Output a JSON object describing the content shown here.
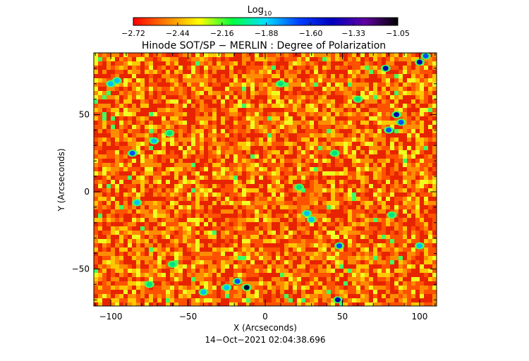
{
  "chart_data": {
    "type": "heatmap",
    "title": "Hinode SOT/SP − MERLIN : Degree of Polarization",
    "xlabel": "X (Arcseconds)",
    "ylabel": "Y (Arcseconds)",
    "timestamp": "14−Oct−2021 02:04:38.696",
    "xlim": [
      -111,
      111
    ],
    "ylim": [
      -74,
      90
    ],
    "x_ticks": [
      {
        "value": -100,
        "label": "−100"
      },
      {
        "value": -50,
        "label": "−50"
      },
      {
        "value": 0,
        "label": "0"
      },
      {
        "value": 50,
        "label": "50"
      },
      {
        "value": 100,
        "label": "100"
      }
    ],
    "y_ticks": [
      {
        "value": -50,
        "label": "−50"
      },
      {
        "value": 0,
        "label": "0"
      },
      {
        "value": 50,
        "label": "50"
      }
    ],
    "colorbar": {
      "title": "Log",
      "title_subscript": "10",
      "range": [
        -2.72,
        -1.05
      ],
      "ticks": [
        {
          "value": -2.72,
          "label": "−2.72"
        },
        {
          "value": -2.44,
          "label": "−2.44"
        },
        {
          "value": -2.16,
          "label": "−2.16"
        },
        {
          "value": -1.88,
          "label": "−1.88"
        },
        {
          "value": -1.6,
          "label": "−1.60"
        },
        {
          "value": -1.33,
          "label": "−1.33"
        },
        {
          "value": -1.05,
          "label": "−1.05"
        }
      ],
      "colors": [
        "#ff0000",
        "#ff8000",
        "#ffff00",
        "#00ff40",
        "#00e0ff",
        "#0040ff",
        "#0000c0",
        "#6000a0",
        "#000000"
      ]
    },
    "field_background_color": "#ff6a00",
    "field_palette": [
      "#e82400",
      "#ff5200",
      "#ff8c00",
      "#ffc800",
      "#f0ff20",
      "#40ff60"
    ],
    "concentrations": [
      {
        "x": -12,
        "y": -62,
        "level": -1.1
      },
      {
        "x": -18,
        "y": -58,
        "level": -1.4
      },
      {
        "x": -25,
        "y": -62,
        "level": -1.5
      },
      {
        "x": 47,
        "y": -70,
        "level": -1.35
      },
      {
        "x": 85,
        "y": 50,
        "level": -1.3
      },
      {
        "x": 88,
        "y": 45,
        "level": -1.45
      },
      {
        "x": 80,
        "y": 40,
        "level": -1.4
      },
      {
        "x": 78,
        "y": 80,
        "level": -1.25
      },
      {
        "x": 100,
        "y": 84,
        "level": -1.3
      },
      {
        "x": 104,
        "y": 88,
        "level": -1.4
      },
      {
        "x": -86,
        "y": 25,
        "level": -1.4
      },
      {
        "x": -72,
        "y": 33,
        "level": -1.55
      },
      {
        "x": -96,
        "y": 72,
        "level": -1.5
      },
      {
        "x": -100,
        "y": 70,
        "level": -1.55
      },
      {
        "x": 48,
        "y": -35,
        "level": -1.4
      },
      {
        "x": 30,
        "y": -18,
        "level": -1.55
      },
      {
        "x": 27,
        "y": -14,
        "level": -1.5
      },
      {
        "x": -62,
        "y": 38,
        "level": -1.6
      },
      {
        "x": 100,
        "y": -35,
        "level": -1.5
      },
      {
        "x": -83,
        "y": -7,
        "level": -1.55
      },
      {
        "x": -60,
        "y": -47,
        "level": -1.6
      },
      {
        "x": 45,
        "y": 25,
        "level": -1.6
      },
      {
        "x": 22,
        "y": 3,
        "level": -1.65
      },
      {
        "x": 82,
        "y": -15,
        "level": -1.65
      },
      {
        "x": -40,
        "y": -65,
        "level": -1.55
      },
      {
        "x": -75,
        "y": -60,
        "level": -1.6
      },
      {
        "x": 10,
        "y": 70,
        "level": -1.65
      },
      {
        "x": 60,
        "y": 60,
        "level": -1.6
      }
    ]
  }
}
